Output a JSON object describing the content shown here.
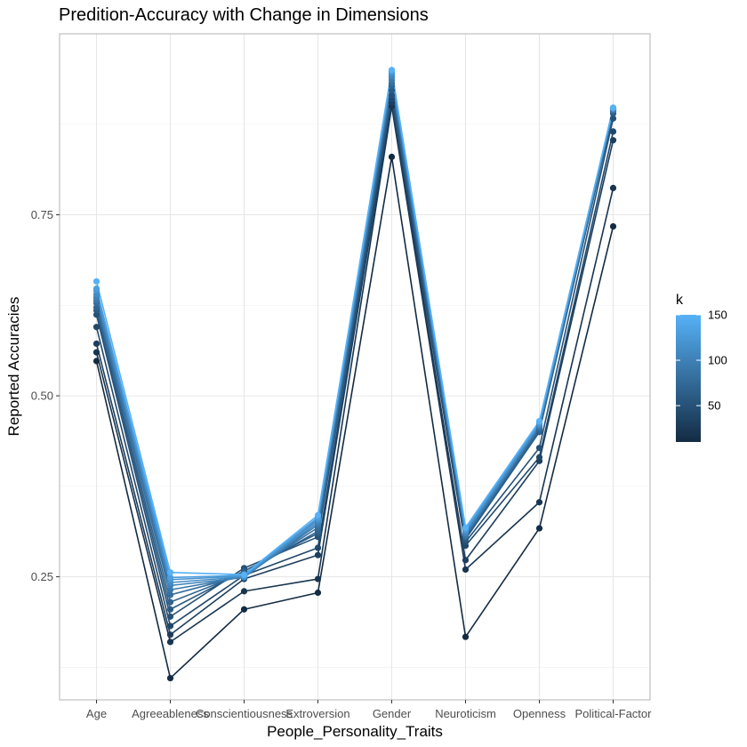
{
  "chart_data": {
    "type": "line",
    "title": "Predition-Accuracy with Change in Dimensions",
    "xlabel": "People_Personality_Traits",
    "ylabel": "Reported Accuracies",
    "categories": [
      "Age",
      "Agreeableness",
      "Conscientiousness",
      "Extroversion",
      "Gender",
      "Neuroticism",
      "Openness",
      "Political-Factor"
    ],
    "y_ticks": [
      0.25,
      0.5,
      0.75
    ],
    "y_tick_labels": [
      "0.25",
      "0.50",
      "0.75"
    ],
    "ylim": [
      0.08,
      1.0
    ],
    "grid": true,
    "legend": {
      "title": "k",
      "position": "right",
      "range": [
        10,
        150
      ],
      "ticks": [
        50,
        100,
        150
      ],
      "tick_labels": [
        "50",
        "100",
        "150"
      ],
      "color_low": "#132b43",
      "color_high": "#56b1f7"
    },
    "series": [
      {
        "k": 10,
        "values": [
          0.548,
          0.11,
          0.205,
          0.228,
          0.83,
          0.167,
          0.317,
          0.734
        ]
      },
      {
        "k": 20,
        "values": [
          0.56,
          0.16,
          0.23,
          0.247,
          0.9,
          0.26,
          0.353,
          0.787
        ]
      },
      {
        "k": 30,
        "values": [
          0.572,
          0.17,
          0.247,
          0.28,
          0.905,
          0.273,
          0.41,
          0.853
        ]
      },
      {
        "k": 40,
        "values": [
          0.595,
          0.182,
          0.252,
          0.29,
          0.91,
          0.293,
          0.415,
          0.865
        ]
      },
      {
        "k": 50,
        "values": [
          0.612,
          0.195,
          0.262,
          0.305,
          0.915,
          0.298,
          0.428,
          0.883
        ]
      },
      {
        "k": 60,
        "values": [
          0.618,
          0.205,
          0.258,
          0.31,
          0.922,
          0.302,
          0.45,
          0.89
        ]
      },
      {
        "k": 70,
        "values": [
          0.622,
          0.215,
          0.255,
          0.313,
          0.928,
          0.305,
          0.452,
          0.893
        ]
      },
      {
        "k": 80,
        "values": [
          0.628,
          0.225,
          0.252,
          0.318,
          0.932,
          0.306,
          0.455,
          0.894
        ]
      },
      {
        "k": 90,
        "values": [
          0.632,
          0.232,
          0.25,
          0.322,
          0.936,
          0.308,
          0.458,
          0.895
        ]
      },
      {
        "k": 100,
        "values": [
          0.636,
          0.238,
          0.249,
          0.325,
          0.94,
          0.31,
          0.458,
          0.896
        ]
      },
      {
        "k": 110,
        "values": [
          0.64,
          0.242,
          0.25,
          0.328,
          0.943,
          0.312,
          0.46,
          0.897
        ]
      },
      {
        "k": 120,
        "values": [
          0.645,
          0.246,
          0.251,
          0.33,
          0.946,
          0.314,
          0.462,
          0.897
        ]
      },
      {
        "k": 130,
        "values": [
          0.648,
          0.249,
          0.252,
          0.332,
          0.948,
          0.316,
          0.463,
          0.898
        ]
      },
      {
        "k": 150,
        "values": [
          0.658,
          0.256,
          0.253,
          0.335,
          0.95,
          0.318,
          0.465,
          0.898
        ]
      }
    ]
  }
}
